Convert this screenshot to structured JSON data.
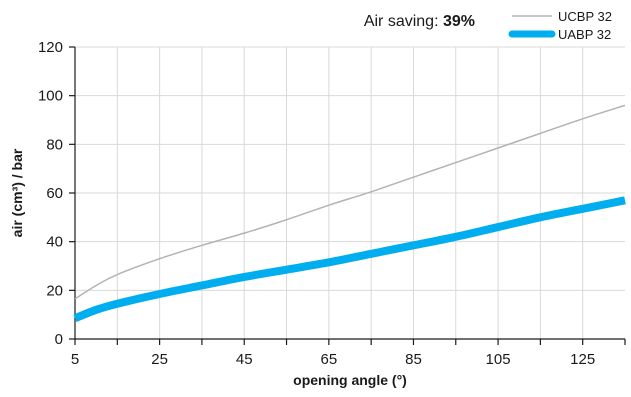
{
  "annotation": {
    "label": "Air saving: ",
    "value": "39%"
  },
  "chart_data": {
    "type": "line",
    "title": "",
    "xlabel": "opening angle (°)",
    "ylabel": "air (cm³) / bar",
    "xlim": [
      5,
      135
    ],
    "ylim": [
      0,
      120
    ],
    "x_ticks": [
      5,
      25,
      45,
      65,
      85,
      105,
      125
    ],
    "y_ticks": [
      0,
      20,
      40,
      60,
      80,
      100,
      120
    ],
    "grid": true,
    "legend_position": "top-right",
    "series": [
      {
        "name": "UCBP 32",
        "color": "#b3b3b3",
        "style": "thin",
        "x": [
          5,
          10,
          15,
          25,
          35,
          45,
          55,
          65,
          75,
          85,
          95,
          105,
          115,
          125,
          135
        ],
        "y": [
          16.5,
          22,
          26.5,
          33,
          38.5,
          43.5,
          49,
          55,
          60.5,
          66.5,
          72.5,
          78.5,
          84.5,
          90.5,
          96
        ]
      },
      {
        "name": "UABP 32",
        "color": "#00aeef",
        "style": "thick",
        "x": [
          5,
          10,
          15,
          25,
          35,
          45,
          55,
          65,
          75,
          85,
          95,
          105,
          115,
          125,
          135
        ],
        "y": [
          8.5,
          12,
          14.5,
          18.5,
          22,
          25.5,
          28.5,
          31.5,
          35,
          38.5,
          42,
          46,
          50,
          53.5,
          57
        ]
      }
    ]
  }
}
